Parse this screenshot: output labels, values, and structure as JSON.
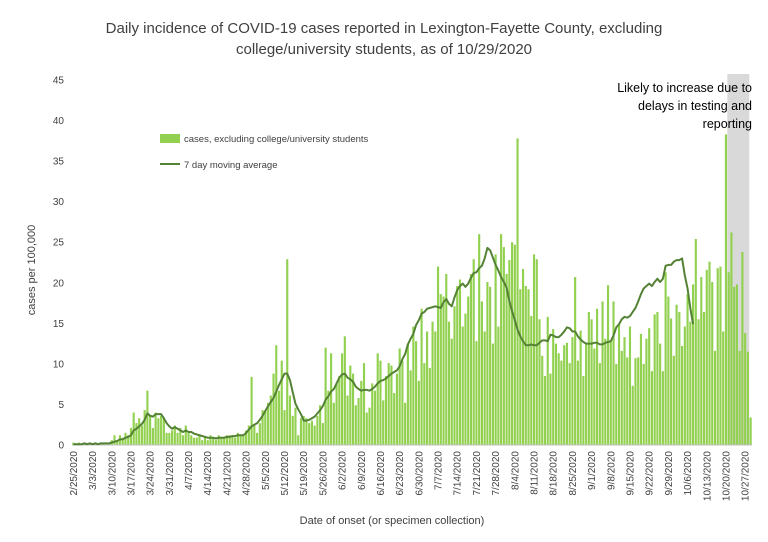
{
  "chart_data": {
    "type": "bar",
    "title_line1": "Daily incidence of COVID-19 cases reported in Lexington-Fayette County, excluding",
    "title_line2": "college/university students, as of 10/29/2020",
    "xlabel": "Date of onset (or specimen collection)",
    "ylabel": "cases per 100,000",
    "ylim": [
      0,
      45
    ],
    "yticks": [
      0,
      5,
      10,
      15,
      20,
      25,
      30,
      35,
      40,
      45
    ],
    "x_start": "2/25/2020",
    "x_tick_labels": [
      "2/25/2020",
      "3/3/2020",
      "3/10/2020",
      "3/17/2020",
      "3/24/2020",
      "3/31/2020",
      "4/7/2020",
      "4/14/2020",
      "4/21/2020",
      "4/28/2020",
      "5/5/2020",
      "5/12/2020",
      "5/19/2020",
      "5/26/2020",
      "6/2/2020",
      "6/9/2020",
      "6/16/2020",
      "6/23/2020",
      "6/30/2020",
      "7/7/2020",
      "7/14/2020",
      "7/21/2020",
      "7/28/2020",
      "8/4/2020",
      "8/11/2020",
      "8/18/2020",
      "8/25/2020",
      "9/1/2020",
      "9/8/2020",
      "9/15/2020",
      "9/22/2020",
      "9/29/2020",
      "10/6/2020",
      "10/13/2020",
      "10/20/2020",
      "10/27/2020"
    ],
    "grid": false,
    "legend_position": "top-left",
    "shaded_region": {
      "from": "10/21/2020",
      "to": "10/29/2020",
      "color": "#d9d9d9"
    },
    "annotation": [
      "Likely to increase due to",
      "delays in testing and",
      "reporting"
    ],
    "series": [
      {
        "name": "cases, excluding college/university students",
        "kind": "bar",
        "color": "#92d050",
        "values": [
          0.3,
          0.0,
          0.3,
          0.0,
          0.3,
          0.0,
          0.3,
          0.0,
          0.3,
          0.0,
          0.3,
          0.3,
          0.0,
          0.3,
          0.6,
          1.2,
          0.6,
          1.2,
          0.9,
          1.5,
          1.2,
          2.1,
          4.0,
          2.7,
          3.3,
          2.4,
          4.3,
          6.7,
          3.6,
          2.1,
          4.0,
          3.3,
          3.6,
          3.3,
          1.5,
          1.5,
          1.8,
          2.4,
          1.5,
          2.1,
          1.2,
          2.4,
          1.5,
          1.2,
          0.9,
          0.9,
          1.2,
          0.6,
          0.9,
          0.6,
          1.2,
          0.9,
          0.6,
          1.2,
          0.9,
          0.9,
          1.2,
          1.2,
          1.2,
          0.9,
          1.5,
          1.2,
          1.2,
          1.8,
          2.4,
          8.4,
          2.4,
          1.5,
          2.7,
          4.3,
          4.3,
          5.2,
          6.1,
          8.8,
          12.3,
          6.7,
          10.4,
          4.3,
          22.9,
          6.1,
          3.6,
          4.6,
          1.2,
          3.3,
          3.6,
          3.3,
          2.7,
          3.0,
          2.4,
          3.6,
          4.9,
          2.7,
          12.0,
          6.7,
          11.3,
          5.2,
          7.6,
          8.5,
          11.3,
          13.4,
          6.1,
          9.8,
          8.8,
          4.9,
          5.8,
          7.9,
          10.1,
          4.0,
          4.6,
          7.6,
          6.7,
          11.3,
          10.4,
          5.5,
          8.5,
          10.1,
          9.8,
          6.4,
          8.8,
          11.9,
          10.4,
          5.2,
          12.5,
          9.2,
          14.6,
          12.8,
          7.9,
          16.8,
          10.1,
          14.0,
          9.5,
          15.2,
          14.0,
          22.0,
          18.6,
          18.3,
          21.1,
          15.2,
          13.1,
          17.1,
          19.6,
          20.4,
          14.6,
          16.2,
          18.3,
          21.1,
          22.9,
          12.8,
          26.0,
          17.7,
          14.0,
          20.1,
          19.5,
          12.5,
          23.5,
          14.6,
          26.0,
          24.4,
          21.1,
          22.8,
          25.0,
          24.7,
          37.8,
          19.2,
          21.7,
          19.6,
          19.2,
          15.9,
          23.5,
          22.9,
          15.5,
          11.0,
          8.5,
          15.8,
          8.8,
          14.3,
          12.5,
          11.3,
          10.4,
          12.3,
          12.6,
          10.1,
          13.3,
          20.7,
          10.4,
          14.1,
          8.5,
          12.5,
          16.4,
          15.5,
          11.9,
          16.8,
          10.1,
          17.7,
          13.1,
          19.7,
          12.8,
          17.7,
          10.0,
          14.9,
          11.6,
          13.3,
          10.8,
          14.6,
          7.3,
          10.7,
          10.8,
          13.7,
          10.0,
          13.1,
          14.4,
          9.1,
          16.1,
          16.4,
          12.5,
          9.1,
          21.3,
          18.3,
          15.6,
          11.0,
          17.3,
          16.4,
          12.2,
          14.6,
          18.6,
          15.2,
          19.8,
          25.4,
          15.5,
          20.7,
          16.4,
          21.6,
          22.6,
          20.1,
          11.6,
          21.8,
          22.0,
          14.0,
          38.3,
          21.3,
          26.2,
          19.5,
          19.8,
          11.6,
          23.8,
          13.8,
          11.5,
          3.4
        ]
      },
      {
        "name": "7 day moving average",
        "kind": "line",
        "color": "#548235",
        "values": [
          0.1,
          0.1,
          0.1,
          0.1,
          0.2,
          0.1,
          0.2,
          0.1,
          0.2,
          0.1,
          0.2,
          0.2,
          0.2,
          0.2,
          0.3,
          0.4,
          0.5,
          0.7,
          0.7,
          0.9,
          1.0,
          1.2,
          1.8,
          2.0,
          2.3,
          2.6,
          3.1,
          3.9,
          3.6,
          3.5,
          3.8,
          3.8,
          3.8,
          3.3,
          2.7,
          2.3,
          2.0,
          2.2,
          2.0,
          1.8,
          1.6,
          1.8,
          1.6,
          1.6,
          1.4,
          1.3,
          1.2,
          1.1,
          1.0,
          0.9,
          0.9,
          0.9,
          0.8,
          0.9,
          0.9,
          0.9,
          1.0,
          1.0,
          1.1,
          1.1,
          1.2,
          1.2,
          1.2,
          1.5,
          1.9,
          2.3,
          2.5,
          2.7,
          3.1,
          3.6,
          4.2,
          4.8,
          5.3,
          5.8,
          6.6,
          7.4,
          8.1,
          8.8,
          8.8,
          8.0,
          6.5,
          5.1,
          4.4,
          3.8,
          3.0,
          3.0,
          3.1,
          3.3,
          3.5,
          3.9,
          4.3,
          4.8,
          5.6,
          6.0,
          6.6,
          6.9,
          7.6,
          8.3,
          8.7,
          8.8,
          8.3,
          8.1,
          7.8,
          7.2,
          6.9,
          6.7,
          6.8,
          6.8,
          6.7,
          6.9,
          7.2,
          7.6,
          7.9,
          8.0,
          8.2,
          8.5,
          8.8,
          9.0,
          9.2,
          9.7,
          10.6,
          11.2,
          12.4,
          13.1,
          13.7,
          14.8,
          15.4,
          16.2,
          16.4,
          16.8,
          16.9,
          17.0,
          17.1,
          17.0,
          16.9,
          17.6,
          18.0,
          17.4,
          17.1,
          18.2,
          19.1,
          19.6,
          19.9,
          19.5,
          19.9,
          20.6,
          21.2,
          21.3,
          21.8,
          22.1,
          23.0,
          24.3,
          24.0,
          23.1,
          22.2,
          21.5,
          20.7,
          20.1,
          19.4,
          17.8,
          16.5,
          15.4,
          14.2,
          13.4,
          12.8,
          12.3,
          12.3,
          12.4,
          12.3,
          12.3,
          12.6,
          12.9,
          12.9,
          12.8,
          13.6,
          13.5,
          13.3,
          13.3,
          13.6,
          14.0,
          14.5,
          14.4,
          14.0,
          14.0,
          13.4,
          13.0,
          12.7,
          12.5,
          12.5,
          12.5,
          12.6,
          12.6,
          12.4,
          12.4,
          12.6,
          12.7,
          12.8,
          13.5,
          14.5,
          14.9,
          15.5,
          15.8,
          15.7,
          15.9,
          16.4,
          16.9,
          17.7,
          18.6,
          19.3,
          19.6,
          19.9,
          19.6,
          20.1,
          20.5,
          20.1,
          20.5,
          22.1,
          22.2,
          22.2,
          22.6,
          22.8,
          22.8,
          23.0,
          20.9,
          19.3,
          16.9,
          14.9
        ]
      }
    ]
  }
}
